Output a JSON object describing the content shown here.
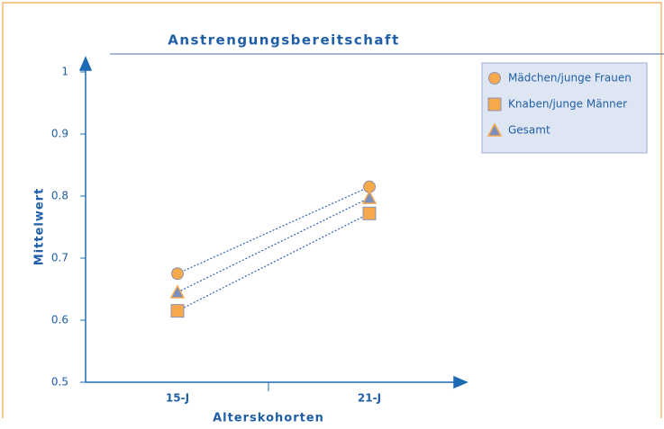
{
  "chart_data": {
    "type": "line",
    "title": "Anstrengungsbereitschaft",
    "x_label": "Alterskohorten",
    "y_label": "Mittelwert",
    "categories": [
      "15-J",
      "21-J"
    ],
    "series": [
      {
        "name": "Mädchen/junge Frauen",
        "marker": "circle",
        "color": "#f6a94a",
        "values": [
          0.675,
          0.815
        ]
      },
      {
        "name": "Knaben/junge Männer",
        "marker": "square",
        "color": "#f6a94a",
        "values": [
          0.615,
          0.772
        ]
      },
      {
        "name": "Gesamt",
        "marker": "triangle",
        "color": "#f6a94a",
        "values": [
          0.645,
          0.797
        ]
      }
    ],
    "ylim": [
      0.5,
      1
    ],
    "yticks": [
      0.5,
      0.6,
      0.7,
      0.8,
      0.9,
      1
    ],
    "legend": "upper right"
  }
}
